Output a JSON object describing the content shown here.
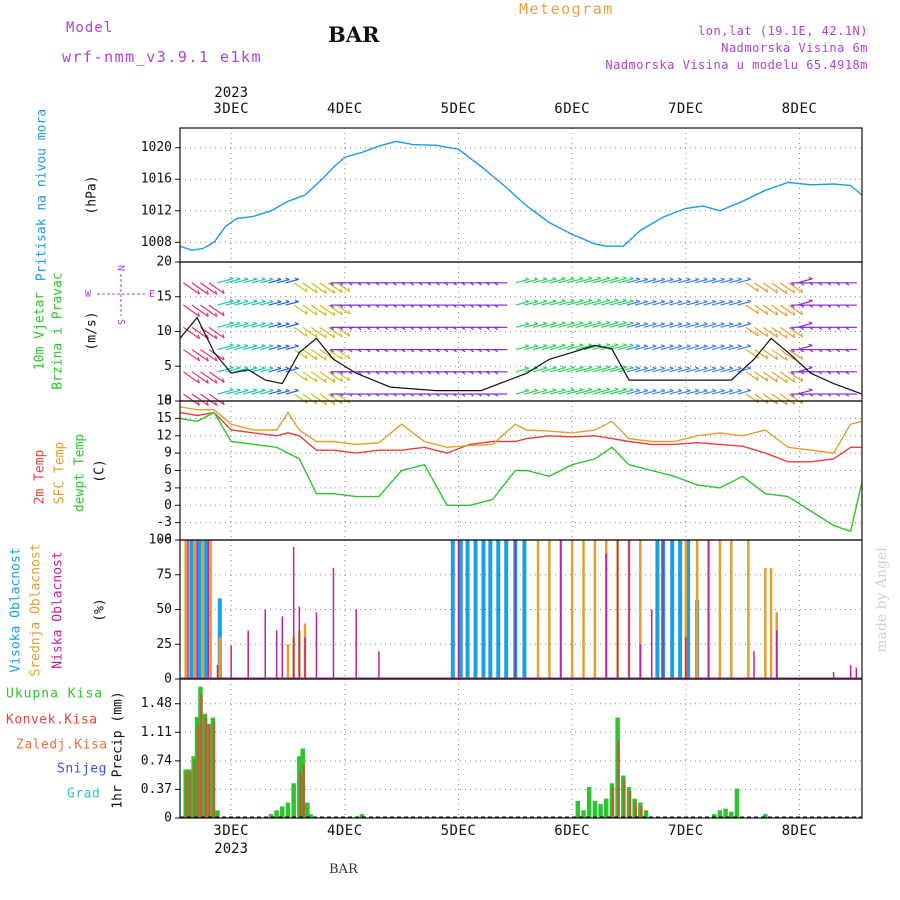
{
  "header": {
    "model_label": "Model",
    "model_value": "wrf-nmm_v3.9.1 e1km",
    "station": "BAR",
    "meteogram": "Meteogram",
    "lonlat": "lon,lat (19.1E, 42.1N)",
    "elevation": "Nadmorska Visina 6m",
    "model_elevation": "Nadmorska Visina u modelu 65.4918m",
    "watermark": "made by Angel",
    "footer_station": "BAR"
  },
  "colors": {
    "pressure": "#1e9be6",
    "temp2m": "#e8413b",
    "sfc": "#e0a030",
    "dewpt": "#2ec42e",
    "high_cloud": "#1aa0e0",
    "mid_cloud": "#e0a030",
    "low_cloud": "#c0209a",
    "precip_total": "#2ec42e",
    "precip_conv": "#e8413b",
    "label_purple": "#b040d0",
    "label_orange": "#e8a040"
  },
  "x_axis": {
    "year": "2023",
    "ticks": [
      "3DEC",
      "4DEC",
      "5DEC",
      "6DEC",
      "7DEC",
      "8DEC"
    ],
    "domain_days": [
      2.55,
      8.55
    ]
  },
  "panels": {
    "pressure": {
      "title": "Pritisak na nivou mora",
      "unit": "(hPa)",
      "yticks": [
        "1008",
        "1012",
        "1016",
        "1020"
      ]
    },
    "wind": {
      "title_line1": "10m Vjetar",
      "title_line2": "Brzina i Pravac",
      "unit": "(m/s)",
      "compass_n": "N",
      "compass_s": "S",
      "compass_w": "W",
      "compass_e": "E",
      "yticks": [
        "0",
        "5",
        "10",
        "15",
        "20"
      ]
    },
    "temperature": {
      "label_2m": "2m Temp",
      "label_sfc": "SFC Temp",
      "label_dew": "dewpt Temp",
      "unit": "(C)",
      "yticks": [
        "-6",
        "-3",
        "0",
        "3",
        "6",
        "9",
        "12",
        "15",
        "18"
      ]
    },
    "cloud": {
      "label_high": "Visoka Oblacnost",
      "label_mid": "Srednja Oblacnost",
      "label_low": "Niska Oblacnost",
      "unit": "(%)",
      "yticks": [
        "0",
        "25",
        "50",
        "75",
        "100"
      ]
    },
    "precip": {
      "label_total": "Ukupna Kisa",
      "label_conv": "Konvek.Kisa",
      "label_frz": "Zaledj.Kisa",
      "label_snow": "Snijeg",
      "label_grad": "Grad",
      "unit": "1hr Precip (mm)",
      "yticks": [
        "0",
        "0.37",
        "0.74",
        "1.11",
        "1.48"
      ]
    }
  },
  "chart_data": [
    {
      "type": "line",
      "title": "Pritisak na nivou mora",
      "ylabel": "(hPa)",
      "ylim": [
        1005.5,
        1022.5
      ],
      "x": [
        2.55,
        2.65,
        2.75,
        2.85,
        2.95,
        3.05,
        3.2,
        3.35,
        3.5,
        3.65,
        3.8,
        3.9,
        4.0,
        4.15,
        4.3,
        4.45,
        4.6,
        4.8,
        5.0,
        5.2,
        5.4,
        5.6,
        5.8,
        6.0,
        6.2,
        6.3,
        6.45,
        6.6,
        6.8,
        7.0,
        7.15,
        7.3,
        7.5,
        7.7,
        7.9,
        8.1,
        8.3,
        8.45,
        8.55
      ],
      "series": [
        {
          "name": "pressure",
          "values": [
            1007.5,
            1007,
            1007.2,
            1008,
            1010,
            1011,
            1011.3,
            1012,
            1013.2,
            1014,
            1016,
            1017.5,
            1018.8,
            1019.4,
            1020.2,
            1020.8,
            1020.4,
            1020.3,
            1019.8,
            1017.6,
            1015.2,
            1012.6,
            1010.5,
            1009,
            1007.8,
            1007.5,
            1007.5,
            1009.5,
            1011.2,
            1012.3,
            1012.6,
            1012,
            1013.2,
            1014.6,
            1015.6,
            1015.3,
            1015.4,
            1015.2,
            1014
          ]
        }
      ]
    },
    {
      "type": "line",
      "title": "10m Vjetar Brzina i Pravac",
      "ylabel": "(m/s)",
      "ylim": [
        0,
        20
      ],
      "x": [
        2.55,
        2.7,
        2.85,
        3.0,
        3.15,
        3.3,
        3.45,
        3.6,
        3.75,
        3.9,
        4.1,
        4.4,
        4.8,
        5.2,
        5.6,
        5.8,
        6.0,
        6.2,
        6.35,
        6.5,
        6.8,
        7.1,
        7.4,
        7.6,
        7.75,
        7.9,
        8.1,
        8.3,
        8.55
      ],
      "series": [
        {
          "name": "wind speed",
          "values": [
            9,
            12,
            7,
            4,
            4.5,
            3,
            2.5,
            7,
            9,
            6,
            4,
            2,
            1.5,
            1.5,
            4,
            6,
            7,
            8,
            7.5,
            3,
            3,
            3,
            3,
            6,
            9,
            7,
            4,
            2.5,
            1
          ]
        }
      ]
    },
    {
      "type": "line",
      "title": "Temperature",
      "ylabel": "(C)",
      "ylim": [
        -6,
        18
      ],
      "x": [
        2.55,
        2.7,
        2.85,
        3.0,
        3.2,
        3.4,
        3.5,
        3.6,
        3.75,
        3.9,
        4.1,
        4.3,
        4.5,
        4.7,
        4.9,
        5.1,
        5.3,
        5.5,
        5.6,
        5.8,
        6.0,
        6.2,
        6.35,
        6.5,
        6.7,
        6.9,
        7.1,
        7.3,
        7.5,
        7.7,
        7.9,
        8.1,
        8.3,
        8.45,
        8.55
      ],
      "series": [
        {
          "name": "2m Temp",
          "values": [
            16,
            15.5,
            16,
            13,
            12.5,
            12,
            12.5,
            12,
            9.5,
            9.5,
            9,
            9.5,
            9.5,
            10,
            9,
            10.5,
            11,
            11,
            11.5,
            12,
            11.8,
            12,
            11.5,
            11,
            10.5,
            10.5,
            10.8,
            10.5,
            10.2,
            9,
            7.5,
            7.5,
            8,
            10,
            10
          ]
        },
        {
          "name": "SFC Temp",
          "values": [
            17,
            16.5,
            16.5,
            14,
            13,
            13,
            16,
            13,
            11,
            11,
            10.5,
            10.8,
            14,
            11,
            10,
            10.3,
            10.5,
            14,
            13,
            12.8,
            12.5,
            13,
            14.5,
            11.5,
            11,
            11,
            12,
            12.5,
            12,
            13,
            10,
            9.5,
            9,
            14,
            14.5
          ]
        },
        {
          "name": "dewpt Temp",
          "values": [
            15,
            14.5,
            16,
            11,
            10.5,
            10,
            9,
            8,
            2,
            2,
            1.5,
            1.5,
            6,
            7,
            0,
            0,
            1,
            6,
            6,
            5,
            7,
            8,
            10,
            7,
            6,
            5,
            3.5,
            3,
            5,
            2,
            1.5,
            -1,
            -3.5,
            -4.5,
            4
          ]
        }
      ]
    },
    {
      "type": "bar",
      "title": "Oblacnost",
      "ylabel": "(%)",
      "ylim": [
        0,
        100
      ],
      "series": [
        {
          "name": "Visoka Oblacnost",
          "x": [
            2.65,
            2.72,
            2.78,
            2.9,
            4.95,
            5.02,
            5.08,
            5.15,
            5.22,
            5.28,
            5.35,
            5.42,
            5.5,
            5.58,
            6.75,
            6.8,
            6.88,
            6.95,
            7.02,
            7.1
          ],
          "values": [
            100,
            100,
            100,
            58,
            100,
            100,
            100,
            100,
            100,
            100,
            100,
            100,
            100,
            100,
            100,
            100,
            100,
            100,
            100,
            57
          ]
        },
        {
          "name": "Srednja Oblacnost",
          "x": [
            2.6,
            2.68,
            2.75,
            2.82,
            2.9,
            3.5,
            3.55,
            3.6,
            3.65,
            5.7,
            5.8,
            5.9,
            6.0,
            6.1,
            6.2,
            6.3,
            6.4,
            6.5,
            6.6,
            7.0,
            7.1,
            7.2,
            7.3,
            7.4,
            7.55,
            7.7,
            7.75,
            7.8
          ],
          "values": [
            100,
            100,
            100,
            100,
            30,
            25,
            30,
            35,
            40,
            100,
            100,
            100,
            100,
            100,
            100,
            100,
            100,
            100,
            100,
            100,
            100,
            100,
            100,
            100,
            100,
            80,
            80,
            48
          ]
        },
        {
          "name": "Niska Oblacnost",
          "x": [
            2.62,
            2.7,
            2.8,
            2.88,
            3.0,
            3.15,
            3.3,
            3.4,
            3.45,
            3.55,
            3.6,
            3.65,
            3.75,
            3.9,
            4.1,
            4.3,
            5.0,
            5.5,
            5.9,
            6.3,
            6.4,
            6.5,
            6.6,
            6.7,
            6.8,
            7.0,
            7.2,
            7.6,
            7.8,
            8.3,
            8.45,
            8.5
          ],
          "values": [
            100,
            100,
            100,
            10,
            24,
            35,
            50,
            35,
            45,
            95,
            52,
            30,
            48,
            80,
            50,
            20,
            100,
            100,
            100,
            90,
            100,
            100,
            25,
            50,
            100,
            30,
            100,
            20,
            35,
            5,
            10,
            8
          ]
        }
      ]
    },
    {
      "type": "bar",
      "title": "1hr Precip",
      "ylabel": "1hr Precip (mm)",
      "ylim": [
        0,
        1.8
      ],
      "series": [
        {
          "name": "Ukupna Kisa",
          "x": [
            2.6,
            2.63,
            2.67,
            2.7,
            2.73,
            2.77,
            2.8,
            2.84,
            2.88,
            3.35,
            3.4,
            3.45,
            3.5,
            3.55,
            3.6,
            3.63,
            3.67,
            3.7,
            4.15,
            6.05,
            6.1,
            6.15,
            6.2,
            6.25,
            6.3,
            6.35,
            6.4,
            6.45,
            6.5,
            6.55,
            6.6,
            6.65,
            7.25,
            7.3,
            7.35,
            7.4,
            7.45,
            7.7
          ],
          "values": [
            0.63,
            0.63,
            0.8,
            1.31,
            1.7,
            1.35,
            1.22,
            1.3,
            0.1,
            0.05,
            0.1,
            0.15,
            0.2,
            0.45,
            0.8,
            0.9,
            0.2,
            0.05,
            0.05,
            0.22,
            0.1,
            0.4,
            0.22,
            0.18,
            0.25,
            0.45,
            1.3,
            0.55,
            0.4,
            0.25,
            0.2,
            0.1,
            0.05,
            0.1,
            0.12,
            0.08,
            0.38,
            0.05
          ]
        },
        {
          "name": "Konvek.Kisa",
          "x": [
            2.6,
            2.63,
            2.67,
            2.7,
            2.73,
            2.77,
            2.8,
            2.84,
            3.6,
            3.63,
            6.35,
            6.4,
            6.45,
            6.5,
            6.55,
            6.6
          ],
          "values": [
            0.6,
            0.6,
            0.75,
            1.2,
            1.6,
            1.3,
            1.2,
            1.25,
            0.6,
            0.7,
            0.4,
            1.0,
            0.5,
            0.35,
            0.2,
            0.15
          ]
        }
      ]
    }
  ]
}
